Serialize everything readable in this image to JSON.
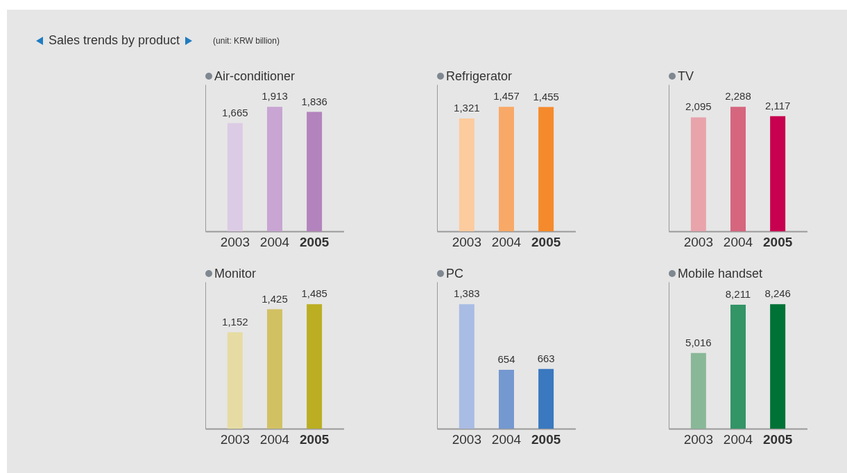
{
  "chart_data": [
    {
      "type": "bar",
      "title": "Air-conditioner",
      "annotations": [
        "Sales trends by product",
        "(unit: KRW billion)"
      ],
      "categories": [
        "2003",
        "2004",
        "2005"
      ],
      "values": [
        1665,
        1913,
        1836
      ],
      "colors": [
        "#dccbe4",
        "#c8a5d2",
        "#b383bd"
      ],
      "value_labels": [
        "1,665",
        "1,913",
        "1,836"
      ]
    },
    {
      "type": "bar",
      "title": "Refrigerator",
      "categories": [
        "2003",
        "2004",
        "2005"
      ],
      "values": [
        1321,
        1457,
        1455
      ],
      "colors": [
        "#fccb9e",
        "#f9a967",
        "#f58a2c"
      ],
      "value_labels": [
        "1,321",
        "1,457",
        "1,455"
      ]
    },
    {
      "type": "bar",
      "title": "TV",
      "categories": [
        "2003",
        "2004",
        "2005"
      ],
      "values": [
        2095,
        2288,
        2117
      ],
      "colors": [
        "#e8a3ab",
        "#d6657e",
        "#c7004f"
      ],
      "value_labels": [
        "2,095",
        "2,288",
        "2,117"
      ]
    },
    {
      "type": "bar",
      "title": "Monitor",
      "categories": [
        "2003",
        "2004",
        "2005"
      ],
      "values": [
        1152,
        1425,
        1485
      ],
      "colors": [
        "#e6dca3",
        "#d2c163",
        "#bbae22"
      ],
      "value_labels": [
        "1,152",
        "1,425",
        "1,485"
      ]
    },
    {
      "type": "bar",
      "title": "PC",
      "categories": [
        "2003",
        "2004",
        "2005"
      ],
      "values": [
        1383,
        654,
        663
      ],
      "colors": [
        "#a9bce4",
        "#7498d0",
        "#3a78bf"
      ],
      "value_labels": [
        "1,383",
        "654",
        "663"
      ]
    },
    {
      "type": "bar",
      "title": "Mobile handset",
      "categories": [
        "2003",
        "2004",
        "2005"
      ],
      "values": [
        5016,
        8211,
        8246
      ],
      "colors": [
        "#88b897",
        "#339466",
        "#007236"
      ],
      "value_labels": [
        "5,016",
        "8,211",
        "8,246"
      ]
    }
  ]
}
